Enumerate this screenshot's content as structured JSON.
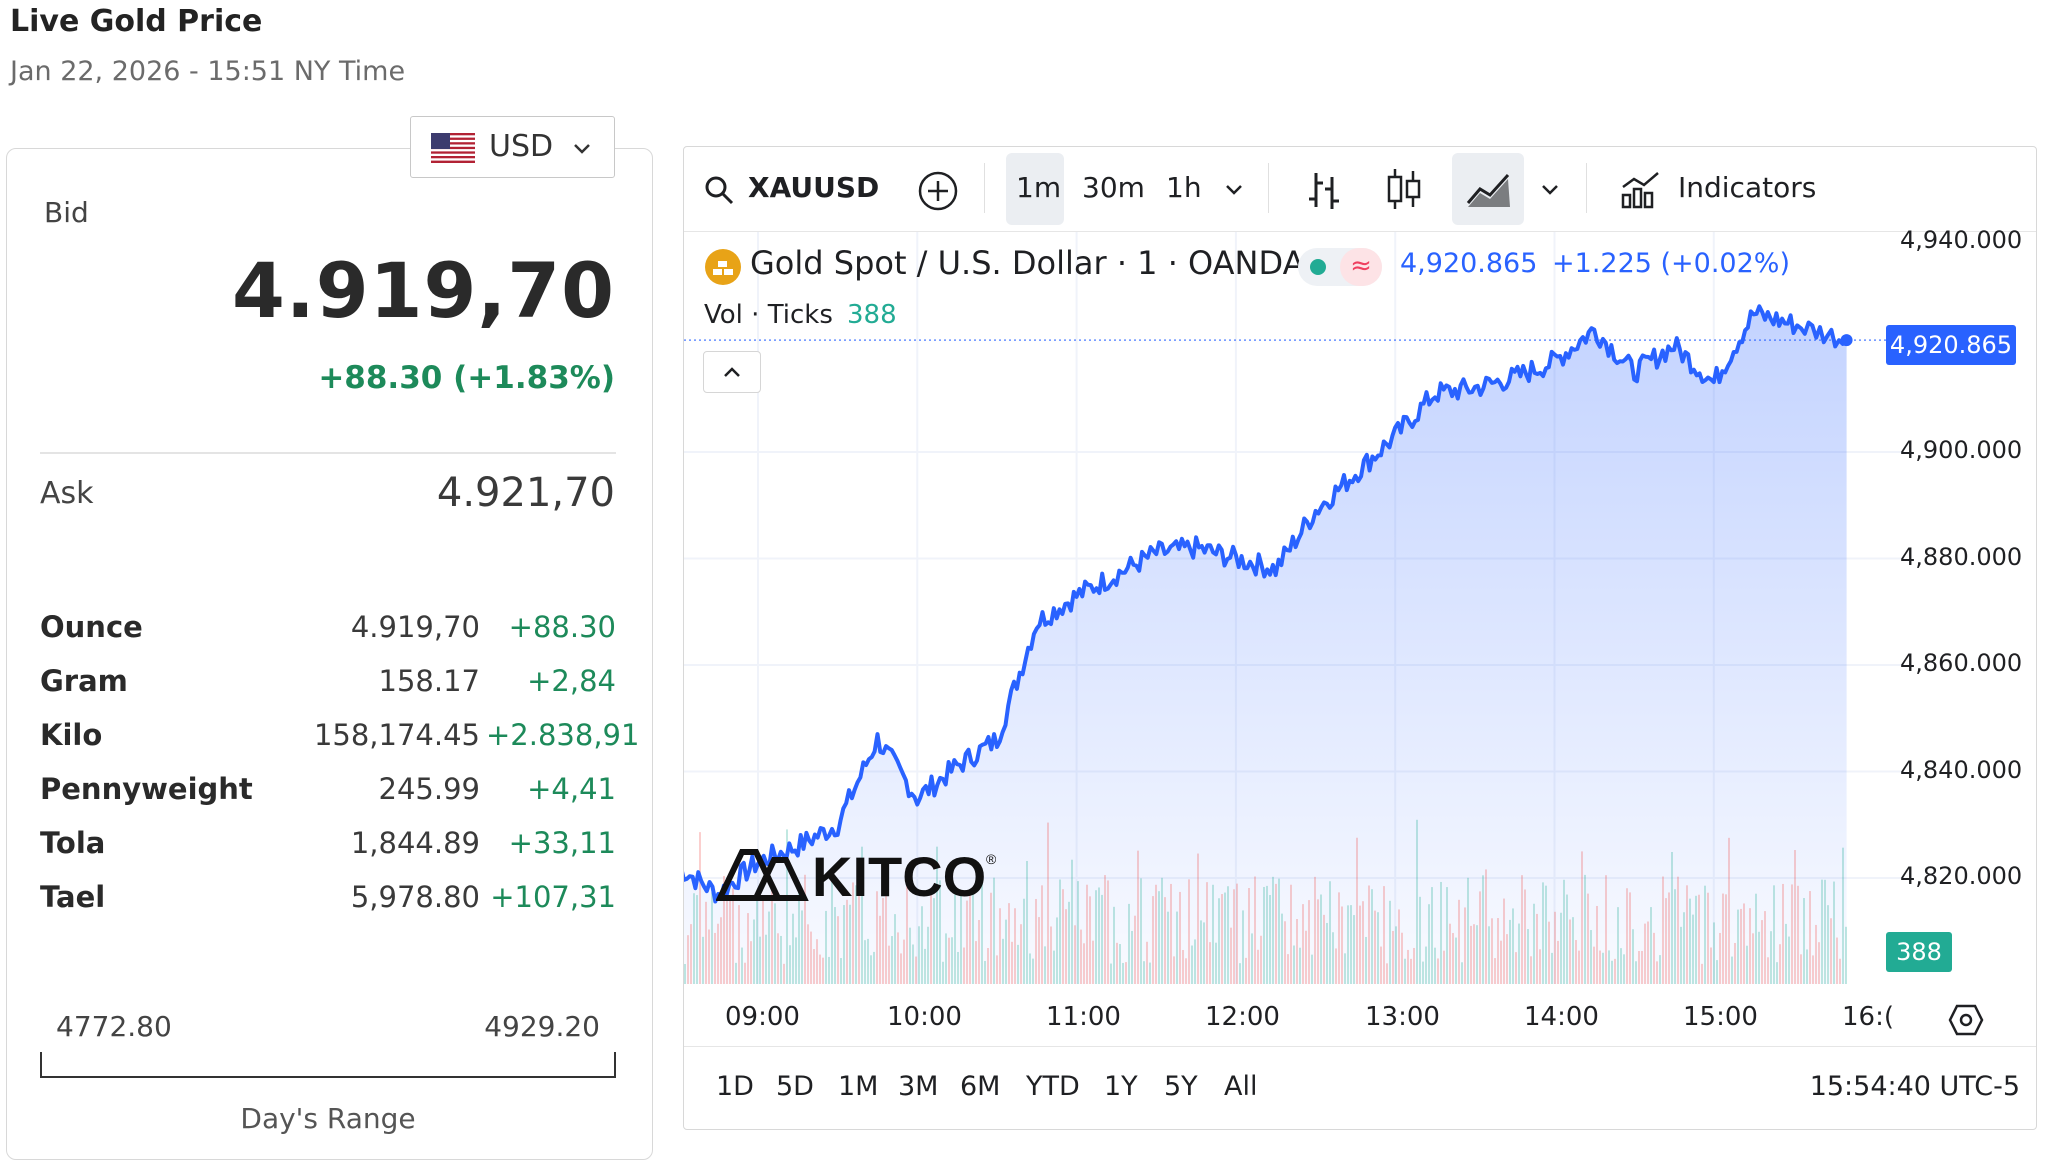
{
  "header": {
    "title": "Live Gold Price",
    "timestamp": "Jan 22, 2026 - 15:51 NY Time"
  },
  "currency_selector": {
    "value": "USD",
    "flag": "us-flag-icon"
  },
  "quote": {
    "bid_label": "Bid",
    "bid": "4.919,70",
    "change": "+88.30 (+1.83%)",
    "ask_label": "Ask",
    "ask": "4.921,70"
  },
  "units": [
    {
      "name": "Ounce",
      "price": "4.919,70",
      "change": "+88.30"
    },
    {
      "name": "Gram",
      "price": "158.17",
      "change": "+2,84"
    },
    {
      "name": "Kilo",
      "price": "158,174.45",
      "change": "+2.838,91"
    },
    {
      "name": "Pennyweight",
      "price": "245.99",
      "change": "+4,41"
    },
    {
      "name": "Tola",
      "price": "1,844.89",
      "change": "+33,11"
    },
    {
      "name": "Tael",
      "price": "5,978.80",
      "change": "+107,31"
    }
  ],
  "day_range": {
    "low": "4772.80",
    "high": "4929.20",
    "label": "Day's Range"
  },
  "chart_toolbar": {
    "symbol": "XAUUSD",
    "intervals": [
      "1m",
      "30m",
      "1h"
    ],
    "active_interval": "1m",
    "indicators_label": "Indicators"
  },
  "chart_legend": {
    "title": "Gold Spot / U.S. Dollar · 1 · OANDA",
    "last": "4,920.865",
    "change": "+1.225 (+0.02%)",
    "vol_label": "Vol · Ticks",
    "vol_value": "388"
  },
  "price_tag": "4,920.865",
  "volume_tag": "388",
  "watermark": "KITCO",
  "range_buttons": [
    "1D",
    "5D",
    "1M",
    "3M",
    "6M",
    "YTD",
    "1Y",
    "5Y",
    "All"
  ],
  "clock": "15:54:40 UTC-5",
  "colors": {
    "line": "#2962ff",
    "up": "#1d8a5a",
    "volume_up": "#22ab94",
    "volume_down": "#ef5350"
  },
  "chart_data": {
    "type": "area",
    "series": [
      {
        "name": "",
        "x": [
          "08:30",
          "08:45",
          "09:00",
          "09:15",
          "09:30",
          "09:45",
          "10:00",
          "10:15",
          "10:30",
          "10:45",
          "11:00",
          "11:15",
          "11:30",
          "11:45",
          "12:00",
          "12:15",
          "12:30",
          "12:45",
          "13:00",
          "13:15",
          "13:30",
          "13:45",
          "14:00",
          "14:15",
          "14:30",
          "14:45",
          "15:00",
          "15:15",
          "15:30",
          "15:50"
        ],
        "values": [
          4822,
          4817,
          4823,
          4826,
          4830,
          4846,
          4835,
          4841,
          4846,
          4868,
          4873,
          4877,
          4881,
          4882,
          4880,
          4878,
          4889,
          4896,
          4903,
          4911,
          4912,
          4914,
          4917,
          4923,
          4915,
          4920,
          4913,
          4926,
          4924,
          4921
        ]
      }
    ],
    "x_ticks": [
      "09:00",
      "10:00",
      "11:00",
      "12:00",
      "13:00",
      "14:00",
      "15:00",
      "16:("
    ],
    "y_ticks": [
      "4,940.000",
      "4,900.000",
      "4,880.000",
      "4,860.000",
      "4,840.000",
      "4,820.000"
    ],
    "ylim": [
      4800,
      4941
    ],
    "grid": true
  }
}
